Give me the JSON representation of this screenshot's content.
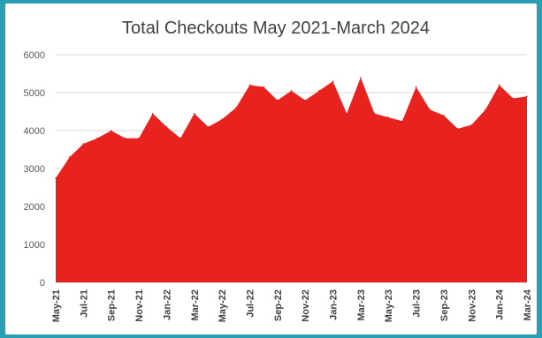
{
  "chart_data": {
    "type": "area",
    "title": "Total Checkouts May 2021-March 2024",
    "xlabel": "",
    "ylabel": "",
    "ylim": [
      0,
      6000
    ],
    "y_ticks": [
      0,
      1000,
      2000,
      3000,
      4000,
      5000,
      6000
    ],
    "grid": true,
    "legend": "none",
    "color": "#e8231f",
    "x": [
      "May-21",
      "Jun-21",
      "Jul-21",
      "Aug-21",
      "Sep-21",
      "Oct-21",
      "Nov-21",
      "Dec-21",
      "Jan-22",
      "Feb-22",
      "Mar-22",
      "Apr-22",
      "May-22",
      "Jun-22",
      "Jul-22",
      "Aug-22",
      "Sep-22",
      "Oct-22",
      "Nov-22",
      "Dec-22",
      "Jan-23",
      "Feb-23",
      "Mar-23",
      "Apr-23",
      "May-23",
      "Jun-23",
      "Jul-23",
      "Aug-23",
      "Sep-23",
      "Oct-23",
      "Nov-23",
      "Dec-23",
      "Jan-24",
      "Feb-24",
      "Mar-24"
    ],
    "x_tick_labels": [
      "May-21",
      "Jul-21",
      "Sep-21",
      "Nov-21",
      "Jan-22",
      "Mar-22",
      "May-22",
      "Jul-22",
      "Sep-22",
      "Nov-22",
      "Jan-23",
      "Mar-23",
      "May-23",
      "Jul-23",
      "Sep-23",
      "Nov-23",
      "Jan-24",
      "Mar-24"
    ],
    "series": [
      {
        "values": [
          2750,
          3300,
          3650,
          3800,
          4000,
          3800,
          3800,
          4450,
          4100,
          3800,
          4450,
          4100,
          4300,
          4600,
          5200,
          5150,
          4800,
          5050,
          4800,
          5050,
          5300,
          4450,
          5400,
          4450,
          4350,
          4250,
          5150,
          4550,
          4400,
          4050,
          4150,
          4550,
          5200,
          4850,
          4900
        ]
      }
    ]
  }
}
